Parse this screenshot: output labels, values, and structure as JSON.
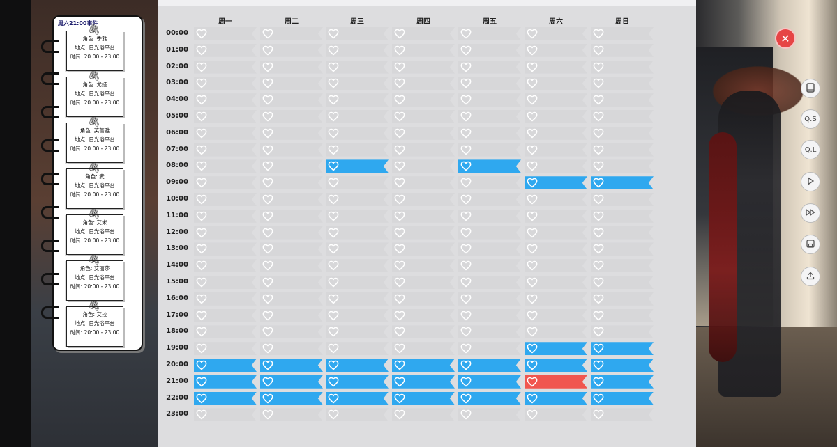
{
  "notebook": {
    "header": "周六21:00事件",
    "notes": [
      {
        "role": "角色: 季雅",
        "place": "地点: 日光浴平台",
        "time": "时间: 20:00 - 23:00"
      },
      {
        "role": "角色: 尤娅",
        "place": "地点: 日光浴平台",
        "time": "时间: 20:00 - 23:00"
      },
      {
        "role": "角色: 芙蕾雅",
        "place": "地点: 日光浴平台",
        "time": "时间: 20:00 - 23:00"
      },
      {
        "role": "角色: 麦",
        "place": "地点: 日光浴平台",
        "time": "时间: 20:00 - 23:00"
      },
      {
        "role": "角色: 艾米",
        "place": "地点: 日光浴平台",
        "time": "时间: 20:00 - 23:00"
      },
      {
        "role": "角色: 艾丽莎",
        "place": "地点: 日光浴平台",
        "time": "时间: 20:00 - 23:00"
      },
      {
        "role": "角色: 艾拉",
        "place": "地点: 日光浴平台",
        "time": "时间: 20:00 - 23:00"
      }
    ]
  },
  "schedule": {
    "days": [
      "周一",
      "周二",
      "周三",
      "周四",
      "周五",
      "周六",
      "周日"
    ],
    "hours": [
      "00:00",
      "01:00",
      "02:00",
      "03:00",
      "04:00",
      "05:00",
      "06:00",
      "07:00",
      "08:00",
      "09:00",
      "10:00",
      "11:00",
      "12:00",
      "13:00",
      "14:00",
      "15:00",
      "16:00",
      "17:00",
      "18:00",
      "19:00",
      "20:00",
      "21:00",
      "22:00",
      "23:00"
    ],
    "active": [
      {
        "day": 2,
        "hour": 8,
        "state": "blue"
      },
      {
        "day": 4,
        "hour": 8,
        "state": "blue"
      },
      {
        "day": 5,
        "hour": 9,
        "state": "blue"
      },
      {
        "day": 6,
        "hour": 9,
        "state": "blue"
      },
      {
        "day": 5,
        "hour": 19,
        "state": "blue"
      },
      {
        "day": 6,
        "hour": 19,
        "state": "blue"
      },
      {
        "day": 0,
        "hour": 20,
        "state": "blue"
      },
      {
        "day": 1,
        "hour": 20,
        "state": "blue"
      },
      {
        "day": 2,
        "hour": 20,
        "state": "blue"
      },
      {
        "day": 3,
        "hour": 20,
        "state": "blue"
      },
      {
        "day": 4,
        "hour": 20,
        "state": "blue"
      },
      {
        "day": 5,
        "hour": 20,
        "state": "blue"
      },
      {
        "day": 6,
        "hour": 20,
        "state": "blue"
      },
      {
        "day": 0,
        "hour": 21,
        "state": "blue"
      },
      {
        "day": 1,
        "hour": 21,
        "state": "blue"
      },
      {
        "day": 2,
        "hour": 21,
        "state": "blue"
      },
      {
        "day": 3,
        "hour": 21,
        "state": "blue"
      },
      {
        "day": 4,
        "hour": 21,
        "state": "blue"
      },
      {
        "day": 5,
        "hour": 21,
        "state": "red"
      },
      {
        "day": 6,
        "hour": 21,
        "state": "blue"
      },
      {
        "day": 0,
        "hour": 22,
        "state": "blue"
      },
      {
        "day": 1,
        "hour": 22,
        "state": "blue"
      },
      {
        "day": 2,
        "hour": 22,
        "state": "blue"
      },
      {
        "day": 3,
        "hour": 22,
        "state": "blue"
      },
      {
        "day": 4,
        "hour": 22,
        "state": "blue"
      },
      {
        "day": 5,
        "hour": 22,
        "state": "blue"
      },
      {
        "day": 6,
        "hour": 22,
        "state": "blue"
      }
    ],
    "colors": {
      "empty": "#d7d7d9",
      "blue": "#2fa8ef",
      "red": "#f0564f"
    }
  },
  "sidebar_buttons": [
    {
      "name": "log-button",
      "icon": "book-icon",
      "label": ""
    },
    {
      "name": "quick-save-button",
      "icon": "",
      "label": "Q.S"
    },
    {
      "name": "quick-load-button",
      "icon": "",
      "label": "Q.L"
    },
    {
      "name": "auto-play-button",
      "icon": "play-icon",
      "label": ""
    },
    {
      "name": "skip-button",
      "icon": "fast-forward-icon",
      "label": ""
    },
    {
      "name": "save-button",
      "icon": "save-icon",
      "label": ""
    },
    {
      "name": "export-button",
      "icon": "upload-icon",
      "label": ""
    }
  ],
  "close_button": {
    "icon": "close-icon",
    "label": "✕"
  }
}
